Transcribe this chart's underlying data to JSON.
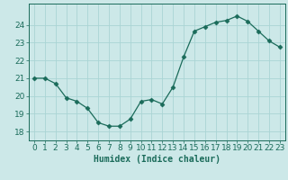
{
  "x": [
    0,
    1,
    2,
    3,
    4,
    5,
    6,
    7,
    8,
    9,
    10,
    11,
    12,
    13,
    14,
    15,
    16,
    17,
    18,
    19,
    20,
    21,
    22,
    23
  ],
  "y": [
    21.0,
    21.0,
    20.7,
    19.9,
    19.7,
    19.3,
    18.5,
    18.3,
    18.3,
    18.7,
    19.7,
    19.8,
    19.55,
    20.5,
    22.2,
    23.65,
    23.9,
    24.15,
    24.25,
    24.5,
    24.2,
    23.65,
    23.1,
    22.75
  ],
  "line_color": "#1a6b5a",
  "marker": "D",
  "marker_size": 2.5,
  "bg_color": "#cce8e8",
  "grid_color": "#aad4d4",
  "tick_color": "#1a6b5a",
  "xlabel": "Humidex (Indice chaleur)",
  "xlabel_fontsize": 7,
  "tick_fontsize": 6.5,
  "ylim": [
    17.5,
    25.2
  ],
  "yticks": [
    18,
    19,
    20,
    21,
    22,
    23,
    24
  ],
  "xtick_labels": [
    "0",
    "1",
    "2",
    "3",
    "4",
    "5",
    "6",
    "7",
    "8",
    "9",
    "10",
    "11",
    "12",
    "13",
    "14",
    "15",
    "16",
    "17",
    "18",
    "19",
    "20",
    "21",
    "22",
    "23"
  ]
}
